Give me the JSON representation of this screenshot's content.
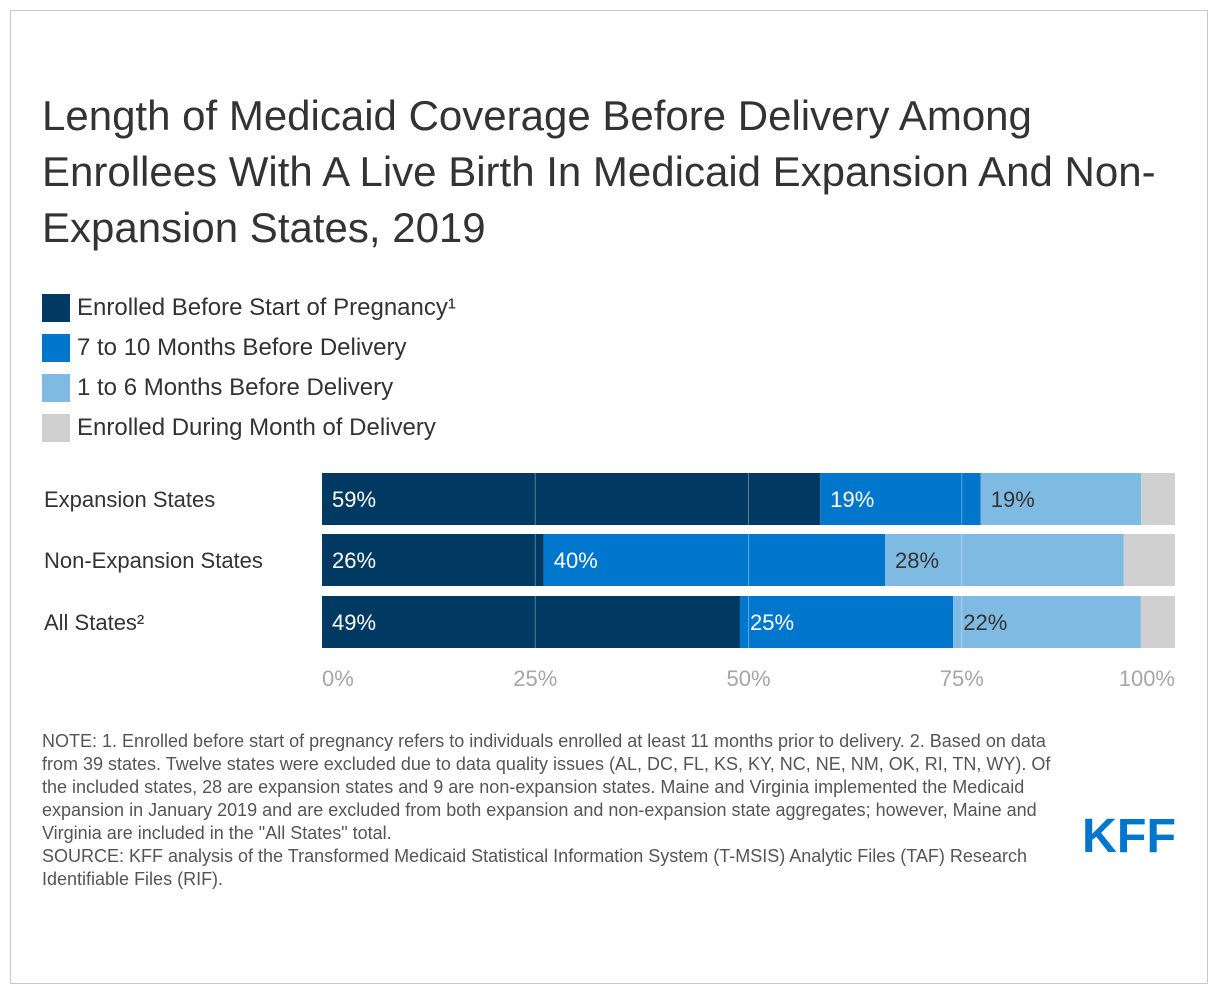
{
  "title": "Length of Medicaid Coverage Before Delivery Among Enrollees With A Live Birth In Medicaid Expansion And Non-Expansion States, 2019",
  "chart_data": {
    "type": "bar",
    "orientation": "horizontal",
    "stacked": true,
    "title": "Length of Medicaid Coverage Before Delivery Among Enrollees With A Live Birth In Medicaid Expansion And Non-Expansion States, 2019",
    "categories": [
      "Expansion States",
      "Non-Expansion States",
      "All States²"
    ],
    "series": [
      {
        "name": "Enrolled Before Start of Pregnancy¹",
        "color": "#003a63",
        "label_color": "#ffffff",
        "values": [
          59,
          26,
          49
        ],
        "labels": [
          "59%",
          "26%",
          "49%"
        ]
      },
      {
        "name": "7 to 10 Months Before Delivery",
        "color": "#0077cc",
        "label_color": "#ffffff",
        "values": [
          19,
          40,
          25
        ],
        "labels": [
          "19%",
          "40%",
          "25%"
        ]
      },
      {
        "name": "1 to 6 Months Before Delivery",
        "color": "#7fbae3",
        "label_color": "#333333",
        "values": [
          19,
          28,
          22
        ],
        "labels": [
          "19%",
          "28%",
          "22%"
        ]
      },
      {
        "name": "Enrolled During Month of Delivery",
        "color": "#d0d0d0",
        "label_color": "#333333",
        "values": [
          4,
          6,
          4
        ],
        "labels": [
          "",
          "",
          ""
        ]
      }
    ],
    "xlim": [
      0,
      100
    ],
    "x_ticks": [
      0,
      25,
      50,
      75,
      100
    ],
    "x_tick_labels": [
      "0%",
      "25%",
      "50%",
      "75%",
      "100%"
    ],
    "grid": true,
    "legend_position": "top-left"
  },
  "note": "NOTE: 1. Enrolled before start of pregnancy refers to individuals enrolled at least 11 months prior to delivery. 2. Based on data from 39 states. Twelve states were excluded due to data quality issues (AL, DC, FL, KS, KY, NC, NE, NM, OK, RI, TN, WY). Of the included states, 28 are expansion states and 9 are non-expansion states. Maine and Virginia implemented the Medicaid expansion in January 2019 and are excluded from both expansion and non-expansion state aggregates; however, Maine and Virginia are included in the \"All States\" total.",
  "source": "SOURCE: KFF analysis of the Transformed Medicaid Statistical Information System (T-MSIS) Analytic Files (TAF) Research Identifiable Files (RIF).",
  "logo": {
    "text": "KFF",
    "color": "#0077cc"
  }
}
